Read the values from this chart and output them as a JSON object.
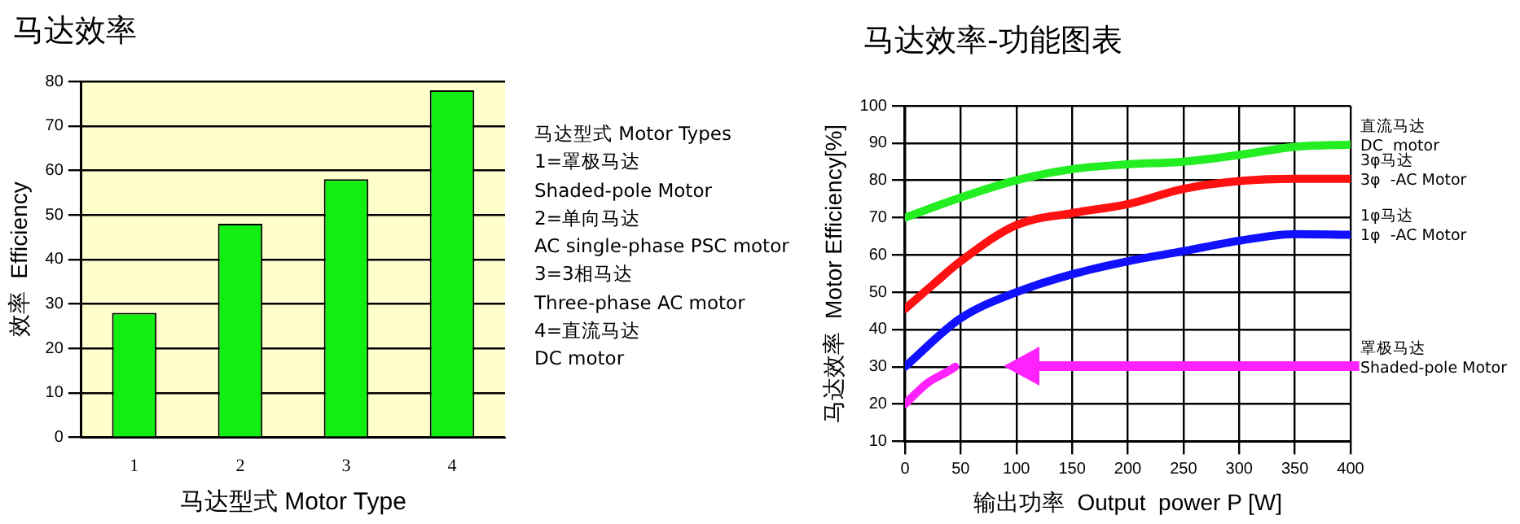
{
  "chart_data": [
    {
      "type": "bar",
      "title": "马达效率",
      "xlabel": "马达型式 Motor Type",
      "ylabel": "效率  Efficiency",
      "categories": [
        "1",
        "2",
        "3",
        "4"
      ],
      "values": [
        28,
        48,
        58,
        78
      ],
      "color": "#11ee11",
      "ylim": [
        0,
        80
      ],
      "yticks": [
        0,
        10,
        20,
        30,
        40,
        50,
        60,
        70,
        80
      ],
      "grid": "y",
      "legend": false,
      "annotations": [
        "马达型式 Motor Types",
        "1=罩极马达",
        "Shaded-pole Motor",
        "2=单向马达",
        "AC single-phase PSC motor",
        "3=3相马达",
        "Three-phase AC motor",
        "4=直流马达",
        "DC motor"
      ]
    },
    {
      "type": "line",
      "title": "马达效率-功能图表",
      "xlabel": "输出功率  Output  power P [W]",
      "ylabel": "马达效率  Motor Efficiency[%]",
      "xlim": [
        0,
        400
      ],
      "xticks": [
        0,
        50,
        100,
        150,
        200,
        250,
        300,
        350,
        400
      ],
      "ylim": [
        10,
        100
      ],
      "yticks": [
        10,
        20,
        30,
        40,
        50,
        60,
        70,
        80,
        90,
        100
      ],
      "grid": true,
      "legend": false,
      "marker": "none",
      "line_style": "solid",
      "series": [
        {
          "name": "直流马达\nDC  motor",
          "color": "#22ee22",
          "x": [
            0,
            50,
            100,
            150,
            200,
            250,
            300,
            350,
            400
          ],
          "values": [
            70,
            75.4,
            80,
            83,
            84.3,
            85,
            86.8,
            89,
            89.6
          ]
        },
        {
          "name": "3φ马达\n3φ  -AC Motor",
          "color": "#ff1111",
          "x": [
            0,
            25,
            50,
            100,
            150,
            200,
            250,
            300,
            350,
            400
          ],
          "values": [
            45.5,
            52,
            58.3,
            68,
            71.2,
            73.6,
            77.7,
            79.8,
            80.4,
            80.4
          ]
        },
        {
          "name": "1φ马达\n1φ  -AC Motor",
          "color": "#1111ff",
          "x": [
            0,
            50,
            100,
            150,
            200,
            250,
            300,
            350,
            400
          ],
          "values": [
            30,
            43,
            50,
            54.8,
            58.3,
            61,
            63.8,
            65.6,
            65.4
          ]
        },
        {
          "name": "罩极马达\nShaded-pole Motor",
          "color": "#ff22ff",
          "x": [
            0,
            20,
            40,
            45
          ],
          "values": [
            20,
            25.6,
            29,
            30
          ]
        }
      ]
    }
  ]
}
